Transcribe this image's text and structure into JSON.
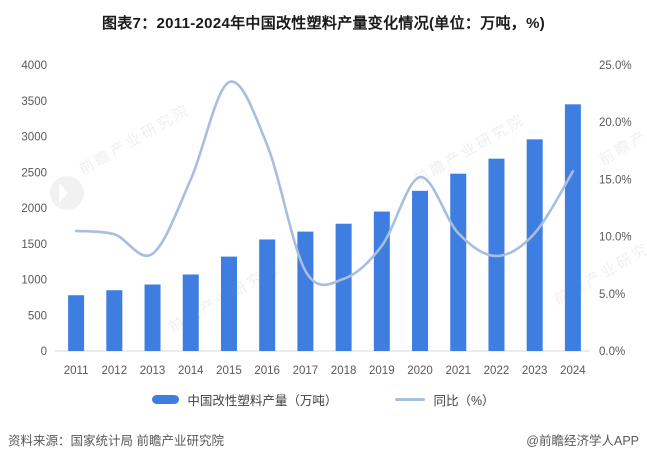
{
  "title": "图表7：2011-2024年中国改性塑料产量变化情况(单位：万吨，%)",
  "chart_data": {
    "type": "bar+line combo",
    "categories": [
      "2011",
      "2012",
      "2013",
      "2014",
      "2015",
      "2016",
      "2017",
      "2018",
      "2019",
      "2020",
      "2021",
      "2022",
      "2023",
      "2024"
    ],
    "series": [
      {
        "name": "中国改性塑料产量（万吨）",
        "type": "bar",
        "axis": "left",
        "values": [
          780,
          850,
          930,
          1070,
          1320,
          1560,
          1670,
          1780,
          1950,
          2240,
          2480,
          2690,
          2960,
          3450
        ]
      },
      {
        "name": "同比（%）",
        "type": "line",
        "axis": "right",
        "smooth": true,
        "values": [
          10.5,
          10.2,
          8.5,
          15.0,
          23.5,
          18.0,
          7.0,
          6.3,
          9.2,
          15.2,
          10.3,
          8.3,
          10.3,
          15.7
        ]
      }
    ],
    "left_axis": {
      "min": 0,
      "max": 4000,
      "ticks": [
        "0",
        "500",
        "1000",
        "1500",
        "2000",
        "2500",
        "3000",
        "3500",
        "4000"
      ]
    },
    "right_axis": {
      "min": 0,
      "max": 25,
      "ticks": [
        "0.0%",
        "5.0%",
        "10.0%",
        "15.0%",
        "20.0%",
        "25.0%"
      ]
    },
    "grid": false,
    "legend_position": "bottom"
  },
  "legend": {
    "bar_label": "中国改性塑料产量（万吨）",
    "line_label": "同比（%）"
  },
  "footer": {
    "source": "资料来源：国家统计局 前瞻产业研究院",
    "credit": "@前瞻经济学人APP"
  },
  "watermark": {
    "text": "前瞻产业研究院"
  },
  "colors": {
    "bar": "#3E7EE0",
    "line": "#A8BEDF",
    "axis_text": "#595959",
    "axis_line": "#D9D9D9",
    "title": "#1A1A1A"
  }
}
